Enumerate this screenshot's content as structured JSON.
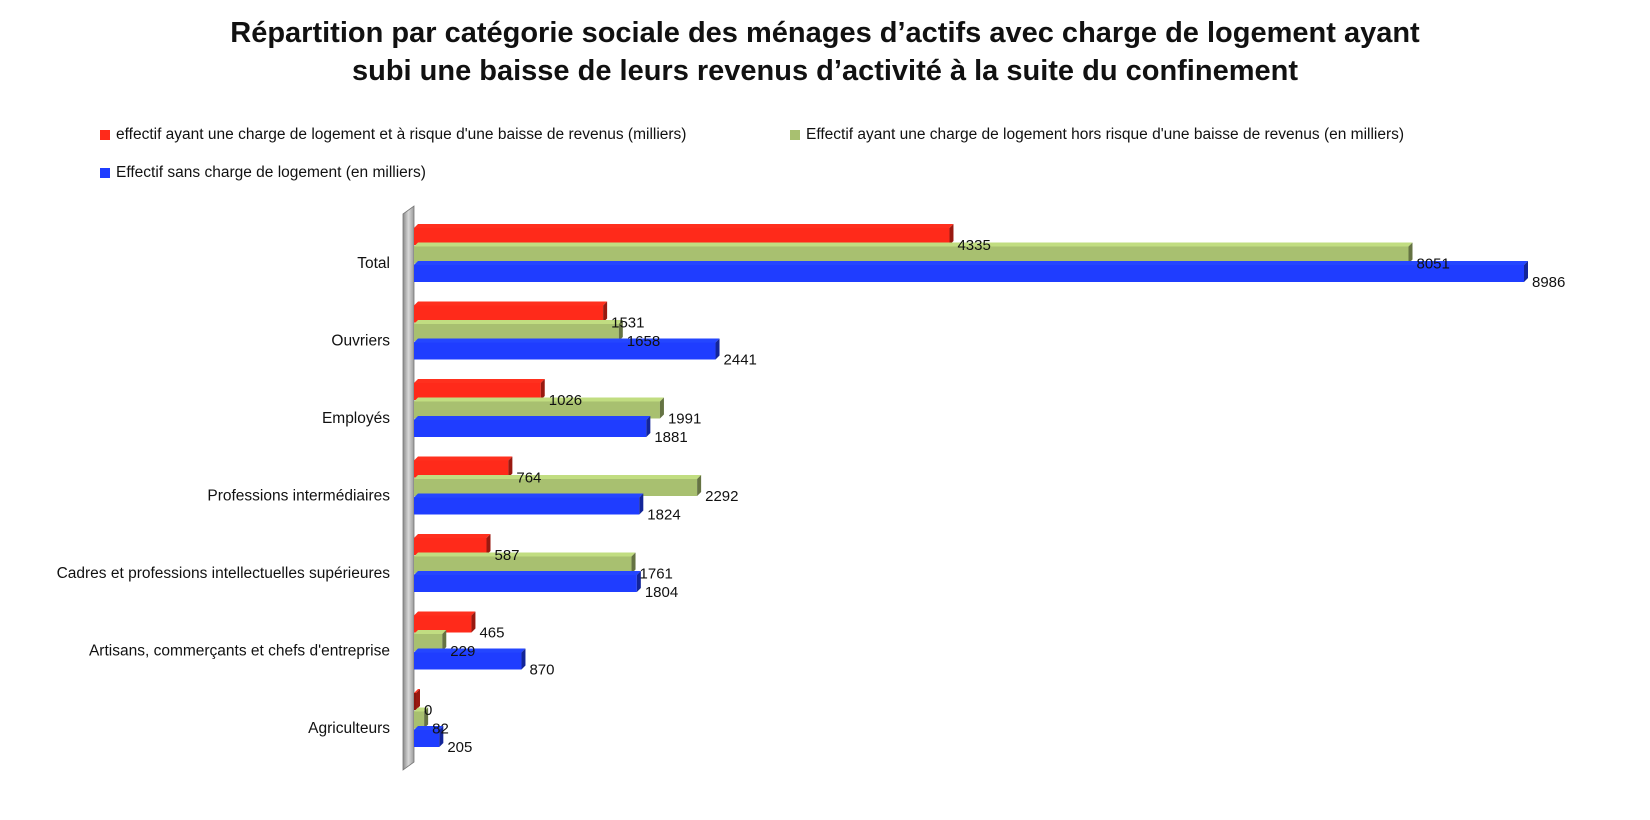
{
  "chart_data": {
    "type": "bar",
    "orientation": "horizontal",
    "title_lines": [
      "Répartition par catégorie sociale des ménages d’actifs avec charge de logement ayant",
      "subi une baisse de leurs revenus d’activité à la suite du confinement"
    ],
    "categories": [
      "Total",
      "Ouvriers",
      "Employés",
      "Professions intermédiaires",
      "Cadres et professions intellectuelles supérieures",
      "Artisans, commerçants et chefs d'entreprise",
      "Agriculteurs"
    ],
    "series": [
      {
        "name": "effectif ayant une charge de logement et à risque d'une baisse de revenus (milliers)",
        "color": "#ff2a1a",
        "values": [
          4335,
          1531,
          1026,
          764,
          587,
          465,
          0
        ]
      },
      {
        "name": "Effectif ayant une charge de logement hors risque d'une baisse de revenus (en milliers)",
        "color": "#a8c070",
        "values": [
          8051,
          1658,
          1991,
          2292,
          1761,
          229,
          82
        ]
      },
      {
        "name": "Effectif sans charge de logement (en milliers)",
        "color": "#1f3dff",
        "values": [
          8986,
          2441,
          1881,
          1824,
          1804,
          870,
          205
        ]
      }
    ],
    "xlim": [
      0,
      9200
    ],
    "legend_position": "top",
    "grid": false
  }
}
